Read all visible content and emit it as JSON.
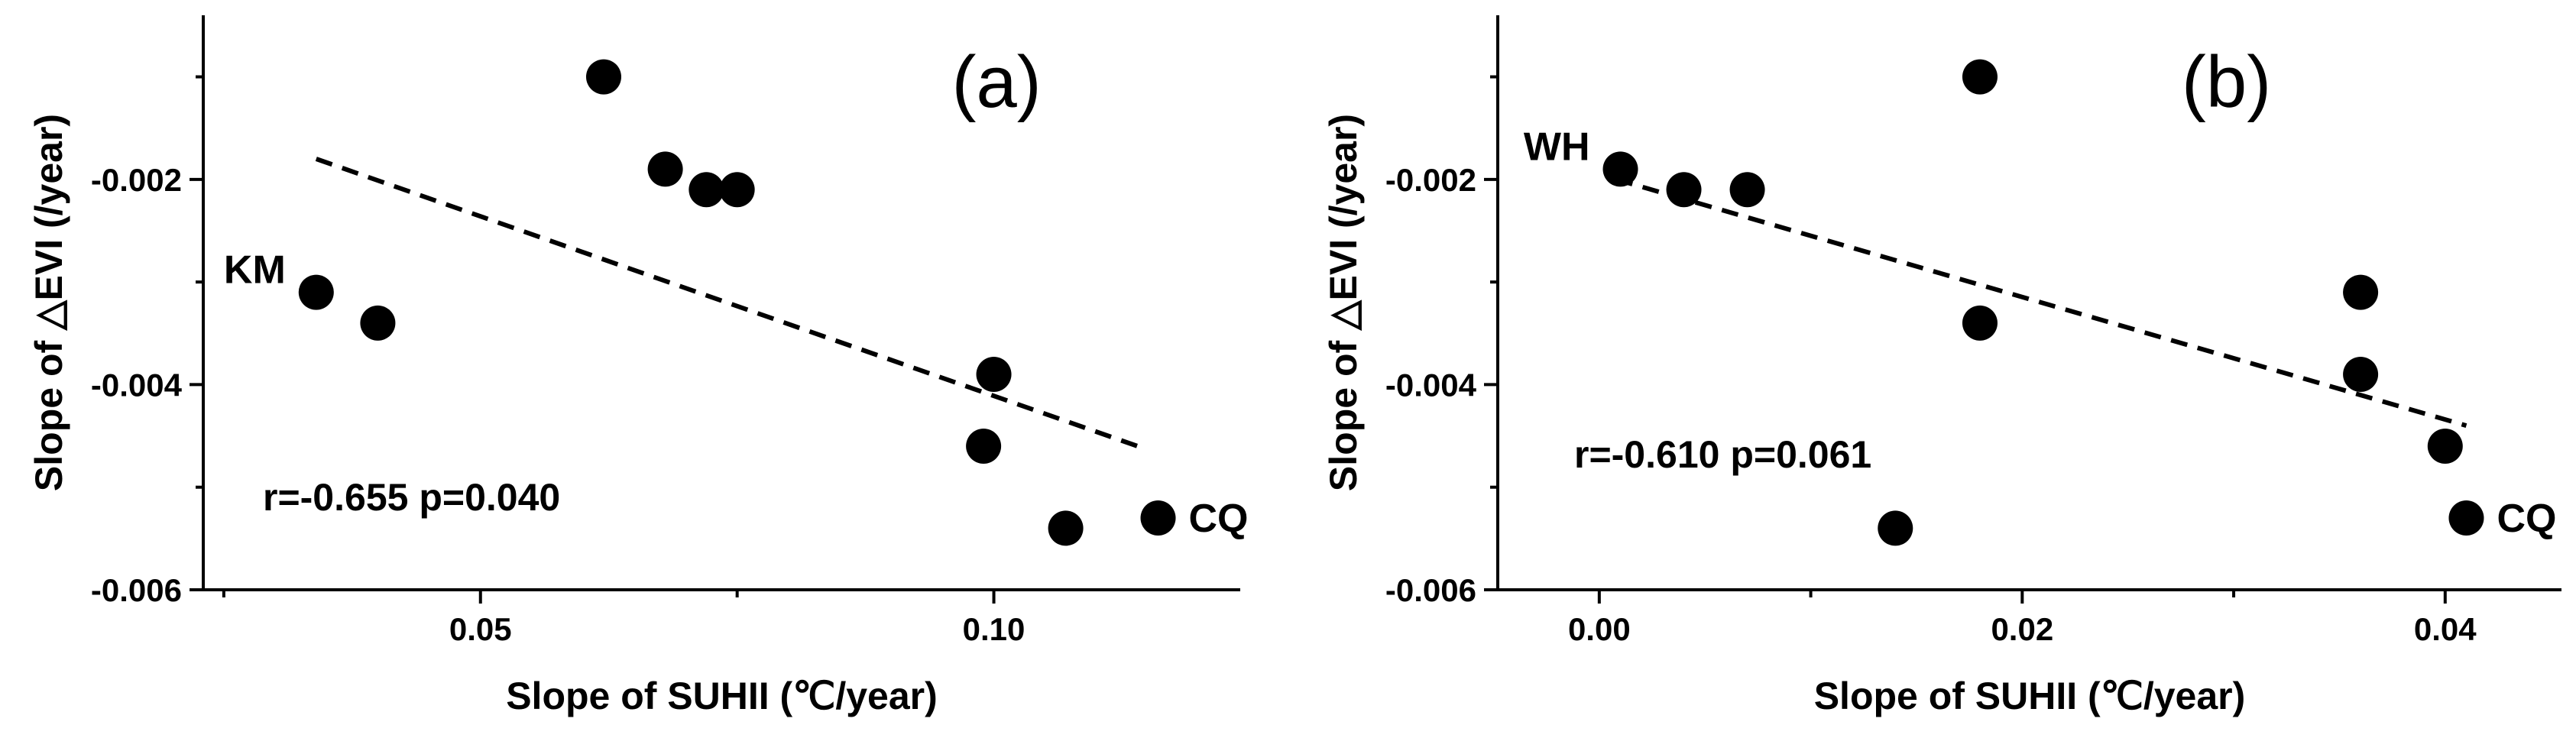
{
  "chart_data": [
    {
      "type": "scatter",
      "panel_label": "(a)",
      "xlabel": "Slope of SUHII (℃/year)",
      "ylabel": "Slope of △EVI (/year)",
      "xlim": [
        0.023,
        0.124
      ],
      "ylim": [
        -0.006,
        -0.0004
      ],
      "xticks": [
        0.05,
        0.1
      ],
      "xtick_labels": [
        "0.05",
        "0.10"
      ],
      "yticks": [
        -0.002,
        -0.004,
        -0.006
      ],
      "ytick_labels": [
        "-0.002",
        "-0.004",
        "-0.006"
      ],
      "points": [
        {
          "x": 0.034,
          "y": -0.0031
        },
        {
          "x": 0.04,
          "y": -0.0034
        },
        {
          "x": 0.062,
          "y": -0.001
        },
        {
          "x": 0.068,
          "y": -0.0019
        },
        {
          "x": 0.072,
          "y": -0.0021
        },
        {
          "x": 0.075,
          "y": -0.0021
        },
        {
          "x": 0.1,
          "y": -0.0039
        },
        {
          "x": 0.099,
          "y": -0.0046
        },
        {
          "x": 0.107,
          "y": -0.0054
        },
        {
          "x": 0.116,
          "y": -0.0053
        }
      ],
      "fit_line": {
        "x": [
          0.034,
          0.114
        ],
        "y": [
          -0.0018,
          -0.0046
        ]
      },
      "annotations": [
        {
          "text": "KM",
          "x": 0.034,
          "y": -0.0031,
          "position": "left"
        },
        {
          "text": "CQ",
          "x": 0.116,
          "y": -0.0053,
          "position": "right"
        }
      ],
      "stat_text": "r=-0.655 p=0.040"
    },
    {
      "type": "scatter",
      "panel_label": "(b)",
      "xlabel": "Slope of SUHII (℃/year)",
      "ylabel": "Slope of △EVI (/year)",
      "xlim": [
        -0.0048,
        0.0455
      ],
      "ylim": [
        -0.006,
        -0.0004
      ],
      "xticks": [
        0.0,
        0.02,
        0.04
      ],
      "xtick_labels": [
        "0.00",
        "0.02",
        "0.04"
      ],
      "yticks": [
        -0.002,
        -0.004,
        -0.006
      ],
      "ytick_labels": [
        "-0.002",
        "-0.004",
        "-0.006"
      ],
      "points": [
        {
          "x": 0.001,
          "y": -0.0019
        },
        {
          "x": 0.004,
          "y": -0.0021
        },
        {
          "x": 0.007,
          "y": -0.0021
        },
        {
          "x": 0.014,
          "y": -0.0054
        },
        {
          "x": 0.018,
          "y": -0.001
        },
        {
          "x": 0.018,
          "y": -0.0034
        },
        {
          "x": 0.036,
          "y": -0.0031
        },
        {
          "x": 0.036,
          "y": -0.0039
        },
        {
          "x": 0.04,
          "y": -0.0046
        },
        {
          "x": 0.041,
          "y": -0.0053
        }
      ],
      "fit_line": {
        "x": [
          0.0008,
          0.041
        ],
        "y": [
          -0.002,
          -0.0044
        ]
      },
      "annotations": [
        {
          "text": "WH",
          "x": 0.001,
          "y": -0.0019,
          "position": "left"
        },
        {
          "text": "CQ",
          "x": 0.041,
          "y": -0.0053,
          "position": "right"
        }
      ],
      "stat_text": "r=-0.610 p=0.061"
    }
  ]
}
